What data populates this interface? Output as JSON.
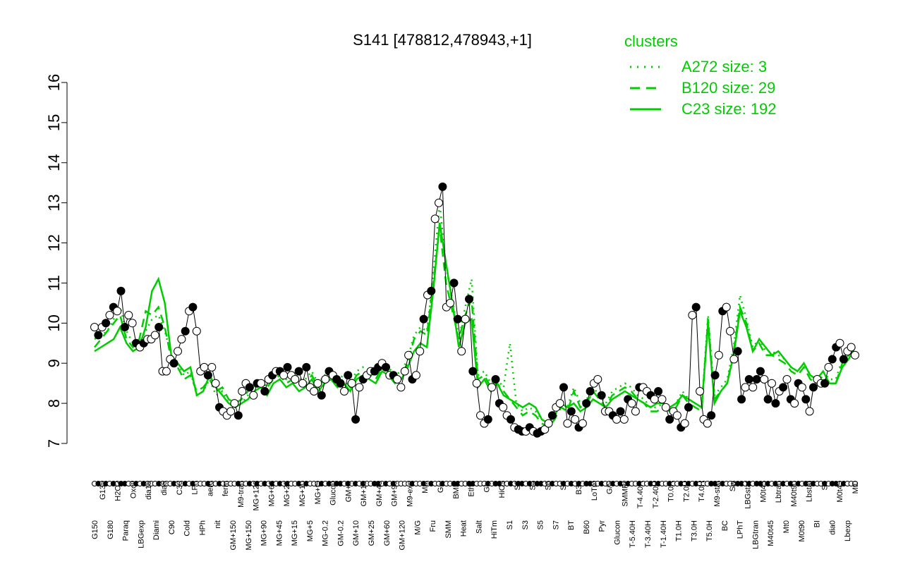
{
  "chart_data": {
    "type": "line",
    "title": "S141 [478812,478943,+1]",
    "ylim": [
      7,
      16
    ],
    "yticks": [
      7,
      8,
      9,
      10,
      11,
      12,
      13,
      14,
      15,
      16
    ],
    "grid": false,
    "legend_placement": "top-right",
    "legend": {
      "title": "clusters",
      "entries": [
        {
          "label": "A272 size: 3",
          "style": "dotted"
        },
        {
          "label": "B120 size: 29",
          "style": "dashed"
        },
        {
          "label": "C23 size: 192",
          "style": "solid"
        }
      ]
    },
    "colors": {
      "clusters": "#00cc00",
      "points": "#000000",
      "fill_open": "#ffffff",
      "fill_closed": "#000000"
    },
    "x_tick_labels": [
      "G150",
      "G135",
      "G180",
      "H2O2",
      "Paraq",
      "Oxctl",
      "LBGexp",
      "dia15",
      "Diami",
      "dia5",
      "C90",
      "C30",
      "Cold",
      "LPh",
      "HPh",
      "aero",
      "nit",
      "ferm",
      "GM+150",
      "M9-tran",
      "MG+150",
      "MG+120",
      "MG+90",
      "MG+60",
      "MG+45",
      "MG+25",
      "MG+15",
      "MG+10",
      "MG+5",
      "MG+t5",
      "MG-0.2",
      "Glucon",
      "GM-0.2",
      "GM+5",
      "GM+10",
      "GM+15",
      "GM+25",
      "GM+45",
      "GM+60",
      "GM+90",
      "GM+120",
      "M9-exp",
      "M/G",
      "Mal",
      "Fru",
      "Glu",
      "SMM",
      "BMM",
      "Heat",
      "Etha",
      "Salt",
      "Gly",
      "HiTm",
      "HiOs",
      "S1",
      "S2",
      "S3",
      "S4",
      "S5",
      "S6",
      "S7",
      "S8",
      "BT",
      "B36",
      "B60",
      "LoTm",
      "Pyr",
      "G/S",
      "Glucon",
      "SMMPr",
      "T-5.40H",
      "T-4.40H",
      "T-3.40H",
      "T-2.40H",
      "T-1.40H",
      "T0.0H",
      "T1.0H",
      "T2.0H",
      "T3.0H",
      "T4.0H",
      "T5.0H",
      "M9-stat",
      "BC",
      "Sw",
      "LPhT",
      "LBGstat",
      "LBGtran",
      "M0t45",
      "M40t45",
      "Lbtran",
      "Mt0",
      "M40t90",
      "M0t90",
      "Lbstat",
      "BI",
      "S0",
      "dia0",
      "M0t45",
      "Lbexp",
      "Mt0"
    ],
    "series": [
      {
        "name": "",
        "values": [
          9.9,
          9.7,
          9.9,
          10.0,
          10.2,
          10.4,
          10.3,
          10.8,
          9.9,
          10.2,
          10.0,
          9.5,
          9.4,
          9.5,
          9.6,
          9.6,
          9.7,
          9.9,
          8.8,
          8.8,
          9.1,
          9.0,
          9.3,
          9.6,
          9.8,
          10.3,
          10.4,
          9.8,
          8.8,
          8.9,
          8.7,
          8.9,
          8.5,
          7.9,
          7.8,
          7.7,
          7.8,
          8.0,
          7.7,
          8.3,
          8.5,
          8.4,
          8.2,
          8.5,
          8.5,
          8.3,
          8.6,
          8.7,
          8.8,
          8.8,
          8.7,
          8.9,
          8.7,
          8.6,
          8.8,
          8.5,
          8.9,
          8.4,
          8.3,
          8.5,
          8.2,
          8.6,
          8.8,
          8.7,
          8.6,
          8.5,
          8.3,
          8.7,
          8.5,
          7.6,
          8.4,
          8.6,
          8.7,
          8.8,
          8.8,
          8.9,
          9.0,
          8.9,
          8.7,
          8.7,
          8.6,
          8.4,
          8.8,
          9.2,
          8.6,
          8.7,
          9.3,
          10.1,
          10.7,
          10.8,
          12.6,
          13.0,
          13.4,
          10.4,
          10.5,
          11.0,
          10.1,
          9.3,
          10.1,
          10.6,
          8.8,
          8.5,
          7.7,
          7.5,
          7.6,
          8.4,
          8.6,
          8.0,
          7.9,
          7.7,
          7.6,
          7.4,
          7.35,
          7.3,
          7.3,
          7.4,
          7.3,
          7.25,
          7.3,
          7.35,
          7.5,
          7.7,
          7.9,
          8.0,
          8.4,
          7.5,
          7.8,
          7.6,
          7.4,
          7.5,
          8.0,
          8.3,
          8.5,
          8.6,
          8.2,
          7.8,
          7.8,
          7.7,
          7.6,
          7.8,
          7.6,
          8.1,
          8.0,
          7.8,
          8.4,
          8.4,
          8.3,
          8.2,
          8.1,
          8.3,
          8.1,
          7.9,
          7.6,
          7.8,
          7.7,
          7.4,
          7.5,
          7.9,
          10.2,
          10.4,
          8.3,
          7.6,
          7.5,
          7.7,
          8.7,
          9.2,
          10.3,
          10.4,
          9.8,
          9.1,
          9.3,
          8.1,
          8.4,
          8.6,
          8.4,
          8.6,
          8.8,
          8.6,
          8.1,
          8.5,
          8.0,
          8.3,
          8.4,
          8.6,
          8.1,
          8.0,
          8.5,
          8.4,
          8.1,
          7.8,
          8.4,
          8.6,
          8.5,
          8.5,
          8.9,
          9.1,
          9.4,
          9.5,
          9.1,
          9.3,
          9.4,
          9.2
        ],
        "filled": [
          false,
          true,
          false,
          true,
          false,
          true,
          false,
          true,
          true,
          false,
          false,
          true,
          false,
          true,
          false,
          false,
          false,
          true,
          false,
          false,
          false,
          true,
          false,
          false,
          true,
          false,
          true,
          false,
          false,
          false,
          true,
          false,
          false,
          true,
          false,
          false,
          false,
          false,
          true,
          false,
          false,
          true,
          false,
          true,
          false,
          true,
          false,
          true,
          false,
          true,
          false,
          true,
          false,
          false,
          true,
          false,
          true,
          false,
          false,
          false,
          true,
          false,
          true,
          false,
          true,
          true,
          false,
          true,
          false,
          true,
          false,
          true,
          false,
          false,
          true,
          true,
          false,
          true,
          false,
          true,
          false,
          false,
          false,
          false,
          true,
          false,
          false,
          true,
          false,
          true,
          false,
          false,
          true,
          false,
          false,
          true,
          true,
          false,
          false,
          true,
          true,
          false,
          false,
          false,
          true,
          false,
          true,
          true,
          false,
          false,
          true,
          false,
          true,
          true,
          false,
          true,
          false,
          true,
          true,
          false,
          false,
          true,
          false,
          false,
          true,
          false,
          true,
          false,
          true,
          false,
          true,
          true,
          false,
          false,
          true,
          false,
          false,
          true,
          false,
          true,
          false,
          true,
          false,
          false,
          true,
          false,
          false,
          true,
          false,
          true,
          false,
          false,
          true,
          false,
          false,
          true,
          false,
          true,
          false,
          true,
          false,
          false,
          false,
          true,
          true,
          false,
          true,
          false,
          false,
          false,
          true,
          true,
          false,
          true,
          false,
          true,
          true,
          false,
          true,
          false,
          true,
          false,
          true,
          false,
          true,
          false,
          true,
          false,
          true,
          false,
          true,
          false,
          false,
          true,
          false,
          true,
          true,
          false,
          true,
          false
        ]
      },
      {
        "name": "C23 size: 192",
        "style": "solid",
        "values": [
          9.3,
          9.4,
          9.5,
          9.6,
          9.9,
          9.5,
          9.3,
          9.4,
          9.9,
          10.8,
          11.1,
          10.5,
          9.2,
          9.0,
          8.8,
          8.9,
          8.2,
          8.3,
          8.7,
          8.4,
          8.2,
          8.0,
          7.9,
          8.0,
          8.1,
          8.3,
          8.4,
          8.2,
          8.5,
          8.6,
          8.4,
          8.5,
          8.3,
          8.4,
          8.6,
          8.3,
          8.5,
          8.6,
          8.4,
          8.5,
          8.3,
          8.6,
          8.7,
          8.6,
          8.5,
          8.8,
          8.7,
          8.5,
          8.6,
          8.9,
          9.3,
          9.5,
          9.4,
          10.8,
          12.5,
          11.5,
          10.5,
          9.4,
          10.0,
          10.1,
          8.4,
          8.6,
          8.3,
          8.5,
          8.2,
          8.1,
          8.0,
          7.9,
          8.0,
          7.9,
          7.6,
          7.5,
          7.7,
          8.0,
          7.9,
          8.0,
          7.8,
          7.9,
          8.1,
          8.0,
          7.9,
          8.1,
          8.2,
          8.3,
          8.2,
          8.1,
          8.0,
          7.9,
          8.0,
          8.0,
          7.9,
          8.0,
          8.2,
          8.1,
          8.0,
          7.9,
          10.0,
          8.0,
          8.3,
          8.5,
          9.2,
          10.3,
          9.9,
          9.3,
          9.6,
          9.4,
          9.2,
          9.3,
          9.1,
          8.9,
          8.8,
          9.0,
          8.7,
          8.6,
          8.8,
          8.5,
          8.5,
          8.9,
          9.1,
          9.4
        ]
      },
      {
        "name": "B120 size: 29",
        "style": "dashed",
        "values": [
          9.4,
          9.6,
          9.8,
          10.0,
          10.2,
          9.6,
          9.4,
          9.6,
          10.3,
          10.2,
          10.4,
          9.9,
          9.1,
          8.9,
          8.6,
          8.7,
          8.3,
          8.4,
          8.6,
          8.3,
          8.4,
          8.1,
          8.0,
          8.1,
          8.3,
          8.5,
          8.5,
          8.4,
          8.6,
          8.7,
          8.5,
          8.6,
          8.5,
          8.5,
          8.7,
          8.4,
          8.6,
          8.7,
          8.5,
          8.6,
          8.4,
          8.7,
          8.8,
          8.7,
          8.6,
          8.9,
          8.8,
          8.6,
          8.7,
          9.0,
          9.6,
          9.8,
          9.7,
          11.0,
          12.4,
          11.0,
          10.3,
          9.6,
          10.2,
          10.6,
          8.6,
          8.7,
          8.4,
          8.5,
          8.3,
          8.1,
          7.9,
          7.7,
          7.8,
          7.7,
          7.5,
          7.4,
          7.6,
          7.9,
          7.8,
          8.3,
          7.9,
          8.0,
          8.3,
          8.1,
          7.9,
          8.2,
          8.3,
          8.4,
          8.3,
          8.1,
          8.0,
          7.8,
          7.8,
          7.9,
          7.8,
          7.9,
          8.2,
          8.0,
          7.9,
          7.8,
          10.1,
          8.1,
          8.3,
          8.5,
          9.3,
          10.4,
          10.0,
          9.3,
          9.5,
          9.2,
          9.2,
          9.1,
          9.0,
          8.8,
          8.7,
          8.9,
          8.6,
          8.5,
          8.7,
          8.5,
          8.5,
          9.0,
          9.2,
          9.4
        ]
      },
      {
        "name": "A272 size: 3",
        "style": "dotted",
        "values": [
          9.6,
          9.7,
          9.8,
          10.1,
          10.4,
          9.8,
          9.5,
          9.5,
          9.8,
          10.1,
          10.2,
          9.8,
          9.2,
          9.0,
          8.7,
          8.8,
          8.2,
          8.3,
          8.6,
          8.2,
          8.3,
          8.0,
          7.9,
          8.0,
          8.2,
          8.4,
          8.6,
          8.4,
          8.7,
          8.8,
          8.6,
          8.7,
          8.6,
          8.6,
          8.8,
          8.5,
          8.7,
          8.8,
          8.6,
          8.7,
          8.5,
          8.8,
          8.9,
          8.8,
          8.7,
          9.0,
          8.9,
          8.7,
          8.8,
          9.1,
          9.7,
          9.9,
          9.8,
          11.2,
          13.0,
          11.4,
          10.6,
          9.6,
          10.4,
          11.1,
          8.7,
          8.8,
          8.5,
          8.6,
          8.4,
          9.5,
          8.0,
          7.8,
          7.9,
          7.8,
          7.6,
          7.5,
          7.7,
          8.0,
          7.9,
          8.4,
          8.0,
          8.1,
          8.4,
          8.2,
          8.0,
          8.3,
          8.4,
          8.5,
          8.4,
          8.2,
          8.1,
          7.9,
          7.9,
          8.0,
          7.9,
          8.0,
          8.3,
          8.1,
          8.0,
          7.9,
          10.2,
          8.2,
          8.4,
          8.6,
          9.4,
          10.7,
          10.1,
          9.4,
          9.6,
          9.3,
          9.3,
          9.2,
          9.1,
          8.9,
          8.8,
          9.0,
          8.7,
          8.6,
          8.8,
          8.6,
          8.6,
          9.1,
          9.3,
          9.4
        ]
      }
    ]
  }
}
